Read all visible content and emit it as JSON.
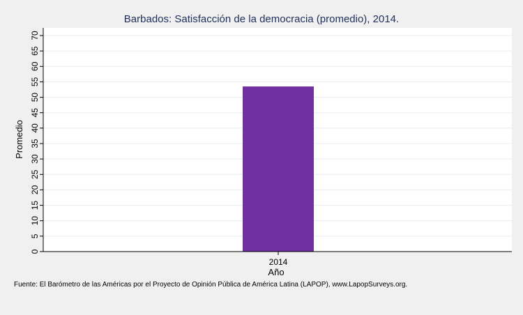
{
  "chart_data": {
    "type": "bar",
    "title": "Barbados: Satisfacción de la democracia (promedio), 2014.",
    "xlabel": "Año",
    "ylabel": "Promedio",
    "categories": [
      "2014"
    ],
    "values": [
      53.5
    ],
    "ylim": [
      0,
      70
    ],
    "yticks": [
      0,
      5,
      10,
      15,
      20,
      25,
      30,
      35,
      40,
      45,
      50,
      55,
      60,
      65,
      70
    ],
    "grid": true,
    "bar_color": "#7030a0"
  },
  "source_note": "Fuente: El Barómetro de las Américas por el Proyecto de Opinión Pública de América Latina (LAPOP), www.LapopSurveys.org."
}
